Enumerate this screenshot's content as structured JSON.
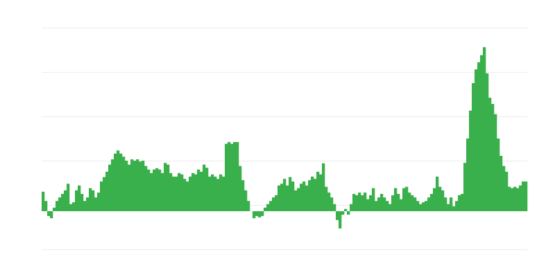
{
  "chart_data": {
    "type": "bar",
    "color": "#39b04b",
    "grid": true,
    "ylim": [
      -86,
      414
    ],
    "yticks": [
      -86,
      14,
      114,
      214,
      314,
      414
    ],
    "values": [
      44,
      23,
      -11,
      -16,
      8,
      23,
      31,
      39,
      47,
      62,
      16,
      20,
      47,
      58,
      39,
      23,
      31,
      52,
      47,
      31,
      42,
      67,
      77,
      89,
      105,
      117,
      130,
      137,
      130,
      123,
      114,
      105,
      117,
      114,
      117,
      112,
      114,
      102,
      94,
      86,
      94,
      97,
      94,
      86,
      109,
      105,
      86,
      78,
      78,
      86,
      83,
      73,
      67,
      78,
      86,
      83,
      94,
      89,
      105,
      98,
      78,
      83,
      78,
      73,
      83,
      78,
      152,
      156,
      152,
      156,
      156,
      102,
      70,
      47,
      23,
      0,
      -16,
      -11,
      -14,
      -11,
      8,
      16,
      23,
      31,
      36,
      58,
      62,
      73,
      58,
      77,
      67,
      47,
      52,
      62,
      67,
      58,
      70,
      78,
      73,
      89,
      83,
      108,
      55,
      42,
      31,
      16,
      -20,
      -39,
      -8,
      5,
      -8,
      16,
      39,
      36,
      42,
      36,
      42,
      27,
      36,
      52,
      23,
      31,
      39,
      31,
      23,
      16,
      36,
      52,
      39,
      27,
      52,
      55,
      42,
      36,
      31,
      23,
      16,
      20,
      23,
      31,
      39,
      52,
      78,
      55,
      47,
      31,
      16,
      31,
      11,
      23,
      36,
      39,
      109,
      164,
      227,
      289,
      320,
      336,
      352,
      370,
      311,
      256,
      242,
      219,
      164,
      125,
      102,
      89,
      55,
      52,
      55,
      52,
      58,
      67,
      67
    ]
  }
}
